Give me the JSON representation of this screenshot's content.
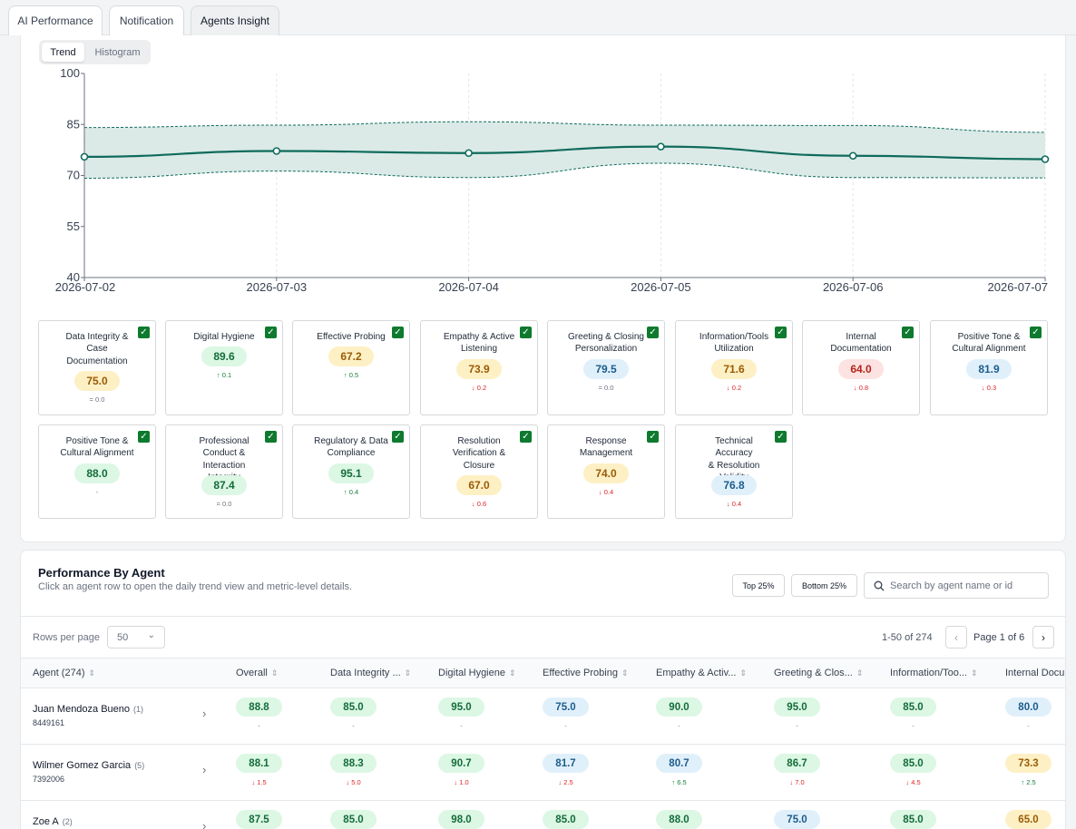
{
  "tabs": [
    {
      "label": "AI Performance"
    },
    {
      "label": "Notification"
    },
    {
      "label": "Agents Insight"
    }
  ],
  "view_toggle": {
    "trend": "Trend",
    "histogram": "Histogram",
    "selected": "Trend"
  },
  "chart_data": {
    "type": "line",
    "x": [
      "2026-07-02",
      "2026-07-03",
      "2026-07-04",
      "2026-07-05",
      "2026-07-06",
      "2026-07-07"
    ],
    "series": [
      {
        "values": [
          75.5,
          77.2,
          76.6,
          78.5,
          75.8,
          74.8
        ]
      },
      {
        "values": [
          84.1,
          84.8,
          85.8,
          84.8,
          84.7,
          82.7
        ]
      },
      {
        "values": [
          69.2,
          71.3,
          69.4,
          73.6,
          69.4,
          69.3
        ]
      }
    ],
    "band": {
      "upper_series_index": 1,
      "lower_series_index": 2
    },
    "yticks": [
      100,
      85,
      70,
      55,
      40
    ],
    "ylim": [
      40,
      100
    ],
    "grid": "vertical-dashed",
    "colors": {
      "line": "#0f6b5c",
      "band": "#dbeae7"
    }
  },
  "metrics": [
    {
      "name": "Data Integrity & Case Documentation",
      "title_lines": [
        "Data Integrity &",
        "Case",
        "Documentation"
      ],
      "score": "75.0",
      "tone": "y",
      "delta": "= 0.0",
      "dir": "flat"
    },
    {
      "name": "Digital Hygiene",
      "title_lines": [
        "Digital Hygiene"
      ],
      "score": "89.6",
      "tone": "g",
      "delta": "↑ 0.1",
      "dir": "up"
    },
    {
      "name": "Effective Probing",
      "title_lines": [
        "Effective Probing"
      ],
      "score": "67.2",
      "tone": "y",
      "delta": "↑ 0.5",
      "dir": "up"
    },
    {
      "name": "Empathy & Active Listening",
      "title_lines": [
        "Empathy & Active",
        "Listening"
      ],
      "score": "73.9",
      "tone": "y",
      "delta": "↓ 0.2",
      "dir": "down"
    },
    {
      "name": "Greeting & Closing Personalization",
      "title_lines": [
        "Greeting & Closing",
        "Personalization"
      ],
      "score": "79.5",
      "tone": "b",
      "delta": "= 0.0",
      "dir": "flat"
    },
    {
      "name": "Information/Tools Utilization",
      "title_lines": [
        "Information/Tools",
        "Utilization"
      ],
      "score": "71.6",
      "tone": "y",
      "delta": "↓ 0.2",
      "dir": "down"
    },
    {
      "name": "Internal Documentation",
      "title_lines": [
        "Internal",
        "Documentation"
      ],
      "score": "64.0",
      "tone": "r",
      "delta": "↓ 0.8",
      "dir": "down"
    },
    {
      "name": "Positive Tone & Cultural Alignment",
      "title_lines": [
        "Positive Tone &",
        "Cultural Alignment"
      ],
      "score": "81.9",
      "tone": "b",
      "delta": "↓ 0.3",
      "dir": "down"
    },
    {
      "name": "Positive Tone & Cultural Alignment",
      "title_lines": [
        "Positive Tone &",
        "Cultural Alignment"
      ],
      "score": "88.0",
      "tone": "g",
      "delta": "-",
      "dir": "flat"
    },
    {
      "name": "Professional Conduct & Interaction Integrity",
      "title_lines": [
        "Professional",
        "Conduct &",
        "Interaction Integrity"
      ],
      "score": "87.4",
      "tone": "g",
      "delta": "= 0.0",
      "dir": "flat"
    },
    {
      "name": "Regulatory & Data Compliance",
      "title_lines": [
        "Regulatory & Data",
        "Compliance"
      ],
      "score": "95.1",
      "tone": "g",
      "delta": "↑ 0.4",
      "dir": "up"
    },
    {
      "name": "Resolution Verification & Closure",
      "title_lines": [
        "Resolution",
        "Verification &",
        "Closure"
      ],
      "score": "67.0",
      "tone": "y",
      "delta": "↓ 0.6",
      "dir": "down"
    },
    {
      "name": "Response Management",
      "title_lines": [
        "Response",
        "Management"
      ],
      "score": "74.0",
      "tone": "y",
      "delta": "↓ 0.4",
      "dir": "down"
    },
    {
      "name": "Technical Accuracy & Resolution Validity",
      "title_lines": [
        "Technical Accuracy",
        "& Resolution",
        "Validity"
      ],
      "score": "76.8",
      "tone": "b",
      "delta": "↓ 0.4",
      "dir": "down"
    }
  ],
  "performance": {
    "title": "Performance By Agent",
    "subtitle": "Click an agent row to open the daily trend view and metric-level details.",
    "top_button": "Top 25%",
    "bottom_button": "Bottom 25%",
    "search_placeholder": "Search by agent name or id",
    "rows_per_page_label": "Rows per page",
    "rows_per_page_value": "50",
    "range_label": "1-50 of 274",
    "page_label": "Page 1 of 6",
    "columns": [
      "Agent (274)",
      "Overall",
      "Data Integrity ...",
      "Digital Hygiene",
      "Effective Probing",
      "Empathy & Activ...",
      "Greeting & Clos...",
      "Information/Too...",
      "Internal Docum"
    ],
    "rows": [
      {
        "name": "Juan Mendoza Bueno",
        "count": "(1)",
        "id": "8449161",
        "cells": [
          {
            "v": "88.8",
            "t": "g",
            "d": "-",
            "dir": "flat"
          },
          {
            "v": "85.0",
            "t": "g",
            "d": "-",
            "dir": "flat"
          },
          {
            "v": "95.0",
            "t": "g",
            "d": "-",
            "dir": "flat"
          },
          {
            "v": "75.0",
            "t": "b",
            "d": "-",
            "dir": "flat"
          },
          {
            "v": "90.0",
            "t": "g",
            "d": "-",
            "dir": "flat"
          },
          {
            "v": "95.0",
            "t": "g",
            "d": "-",
            "dir": "flat"
          },
          {
            "v": "85.0",
            "t": "g",
            "d": "-",
            "dir": "flat"
          },
          {
            "v": "80.0",
            "t": "b",
            "d": "-",
            "dir": "flat"
          }
        ]
      },
      {
        "name": "Wilmer Gomez Garcia",
        "count": "(5)",
        "id": "7392006",
        "cells": [
          {
            "v": "88.1",
            "t": "g",
            "d": "↓ 1.5",
            "dir": "down"
          },
          {
            "v": "88.3",
            "t": "g",
            "d": "↓ 5.0",
            "dir": "down"
          },
          {
            "v": "90.7",
            "t": "g",
            "d": "↓ 1.0",
            "dir": "down"
          },
          {
            "v": "81.7",
            "t": "b",
            "d": "↓ 2.5",
            "dir": "down"
          },
          {
            "v": "80.7",
            "t": "b",
            "d": "↑ 6.5",
            "dir": "up"
          },
          {
            "v": "86.7",
            "t": "g",
            "d": "↓ 7.0",
            "dir": "down"
          },
          {
            "v": "85.0",
            "t": "g",
            "d": "↓ 4.5",
            "dir": "down"
          },
          {
            "v": "73.3",
            "t": "y",
            "d": "↑ 2.5",
            "dir": "up"
          }
        ]
      },
      {
        "name": "Zoe A",
        "count": "(2)",
        "id": "",
        "cells": [
          {
            "v": "87.5",
            "t": "g",
            "d": "",
            "dir": "flat"
          },
          {
            "v": "85.0",
            "t": "g",
            "d": "",
            "dir": "flat"
          },
          {
            "v": "98.0",
            "t": "g",
            "d": "",
            "dir": "flat"
          },
          {
            "v": "85.0",
            "t": "g",
            "d": "",
            "dir": "flat"
          },
          {
            "v": "88.0",
            "t": "g",
            "d": "",
            "dir": "flat"
          },
          {
            "v": "75.0",
            "t": "b",
            "d": "",
            "dir": "flat"
          },
          {
            "v": "85.0",
            "t": "g",
            "d": "",
            "dir": "flat"
          },
          {
            "v": "65.0",
            "t": "y",
            "d": "",
            "dir": "flat"
          }
        ]
      }
    ]
  }
}
